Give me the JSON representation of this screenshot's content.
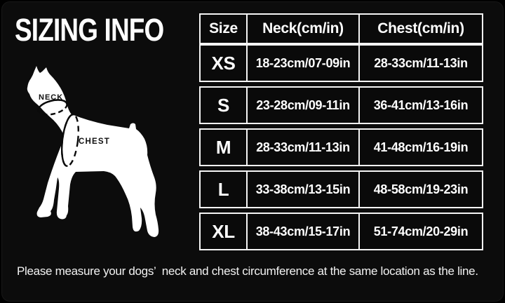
{
  "title": "SIZING INFO",
  "diagram": {
    "neck_label": "NECK",
    "chest_label": "CHEST"
  },
  "table": {
    "headers": [
      "Size",
      "Neck(cm/in)",
      "Chest(cm/in)"
    ],
    "rows": [
      {
        "size": "XS",
        "neck": "18-23cm/07-09in",
        "chest": "28-33cm/11-13in"
      },
      {
        "size": "S",
        "neck": "23-28cm/09-11in",
        "chest": "36-41cm/13-16in"
      },
      {
        "size": "M",
        "neck": "28-33cm/11-13in",
        "chest": "41-48cm/16-19in"
      },
      {
        "size": "L",
        "neck": "33-38cm/13-15in",
        "chest": "48-58cm/19-23in"
      },
      {
        "size": "XL",
        "neck": "38-43cm/15-17in",
        "chest": "51-74cm/20-29in"
      }
    ]
  },
  "footer": {
    "note": "Please measure your dogs’  neck and chest circumference at the same location as the line."
  },
  "colors": {
    "background": "#000000",
    "panel": "#0c0c0c",
    "text": "#ffffff",
    "table_border": "#f5f5f5",
    "dog_fill": "#ffffff",
    "measure_line": "#0a0a0a"
  }
}
